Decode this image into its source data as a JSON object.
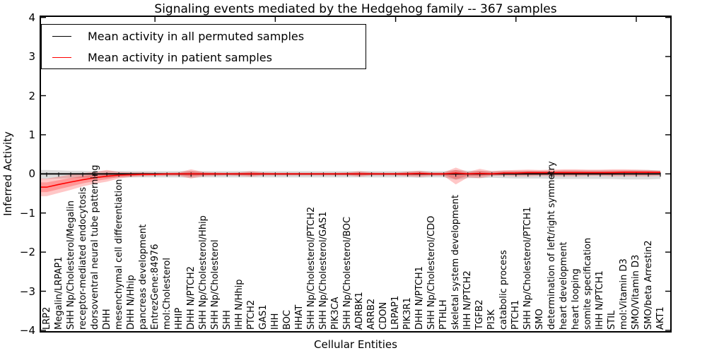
{
  "chart_data": {
    "type": "line",
    "title": "Signaling events mediated by the Hedgehog family -- 367 samples",
    "xlabel": "Cellular Entities",
    "ylabel": "Inferred Activity",
    "ylim": [
      -4,
      4
    ],
    "yticks": [
      4,
      3,
      2,
      1,
      0,
      -1,
      -2,
      -3,
      -4
    ],
    "grid": false,
    "legend_position": "upper left",
    "top_axis_tick_positions": [
      9,
      19,
      29,
      39,
      49
    ],
    "categories": [
      "LRP2",
      "Megalin/LRPAP1",
      "SHH Np/Cholesterol/Megalin",
      "receptor-mediated endocytosis",
      "dorsoventral neural tube patterning",
      "DHH",
      "mesenchymal cell differentiation",
      "DHH N/Hhip",
      "pancreas development",
      "EntrezGene:84976",
      "mol:Cholesterol",
      "HHIP",
      "DHH N/PTCH2",
      "SHH Np/Cholesterol/Hhip",
      "SHH Np/Cholesterol",
      "SHH",
      "IHH N/Hhip",
      "PTCH2",
      "GAS1",
      "IHH",
      "BOC",
      "HHAT",
      "SHH Np/Cholesterol/PTCH2",
      "SHH Np/Cholesterol/GAS1",
      "PIK3CA",
      "SHH Np/Cholesterol/BOC",
      "ADRBK1",
      "ARRB2",
      "CDON",
      "LRPAP1",
      "PIK3R1",
      "DHH N/PTCH1",
      "SHH Np/Cholesterol/CDO",
      "PTHLH",
      "skeletal system development",
      "IHH N/PTCH2",
      "TGFB2",
      "PI3K",
      "catabolic process",
      "PTCH1",
      "SHH Np/Cholesterol/PTCH1",
      "SMO",
      "determination of left/right symmetry",
      "heart development",
      "heart looping",
      "somite specification",
      "IHH N/PTCH1",
      "STIL",
      "mol:Vitamin D3",
      "SMO/Vitamin D3",
      "SMO/beta Arrestin2",
      "AKT1"
    ],
    "series": [
      {
        "name": "Mean activity in all permuted samples",
        "color": "#000000",
        "band_color": "rgba(0,0,0,0.14)",
        "values": [
          0,
          0,
          0,
          0,
          0,
          0,
          0,
          0,
          0,
          0,
          0,
          0,
          0,
          0,
          0,
          0,
          0,
          0,
          0,
          0,
          0,
          0,
          0,
          0,
          0,
          0,
          0,
          0,
          0,
          0,
          0,
          0,
          0,
          0,
          0,
          0,
          0,
          0,
          0,
          0,
          0,
          0,
          0,
          0,
          0,
          0,
          0,
          0,
          0,
          0,
          0,
          0
        ],
        "band_upper": [
          0.1,
          0.09,
          0.08,
          0.08,
          0.07,
          0.08,
          0.07,
          0.07,
          0.07,
          0.07,
          0.07,
          0.07,
          0.08,
          0.07,
          0.07,
          0.07,
          0.07,
          0.07,
          0.07,
          0.07,
          0.07,
          0.07,
          0.07,
          0.07,
          0.07,
          0.07,
          0.07,
          0.07,
          0.07,
          0.07,
          0.07,
          0.08,
          0.07,
          0.07,
          0.1,
          0.08,
          0.08,
          0.07,
          0.08,
          0.08,
          0.08,
          0.08,
          0.08,
          0.09,
          0.09,
          0.09,
          0.09,
          0.09,
          0.09,
          0.1,
          0.1,
          0.09
        ],
        "band_lower": [
          -0.13,
          -0.12,
          -0.11,
          -0.1,
          -0.1,
          -0.1,
          -0.09,
          -0.09,
          -0.09,
          -0.09,
          -0.09,
          -0.09,
          -0.1,
          -0.09,
          -0.09,
          -0.09,
          -0.09,
          -0.09,
          -0.09,
          -0.09,
          -0.09,
          -0.09,
          -0.09,
          -0.09,
          -0.09,
          -0.09,
          -0.09,
          -0.09,
          -0.09,
          -0.09,
          -0.09,
          -0.1,
          -0.09,
          -0.09,
          -0.15,
          -0.11,
          -0.11,
          -0.1,
          -0.11,
          -0.12,
          -0.12,
          -0.12,
          -0.13,
          -0.13,
          -0.13,
          -0.13,
          -0.13,
          -0.13,
          -0.14,
          -0.14,
          -0.14,
          -0.13
        ]
      },
      {
        "name": "Mean activity in patient samples",
        "color": "#ff0000",
        "band_color": "rgba(255,0,0,0.22)",
        "values": [
          -0.34,
          -0.27,
          -0.21,
          -0.15,
          -0.1,
          -0.06,
          -0.03,
          -0.02,
          -0.01,
          -0.01,
          0,
          0,
          0,
          0,
          0,
          0,
          0,
          0,
          0,
          0,
          0,
          0,
          0,
          0,
          0,
          0,
          0,
          0,
          0,
          0,
          0,
          0.01,
          0,
          0,
          0.02,
          0,
          0.01,
          0,
          0.02,
          0.02,
          0.03,
          0.03,
          0.03,
          0.03,
          0.03,
          0.03,
          0.03,
          0.03,
          0.04,
          0.04,
          0.04,
          0.04
        ],
        "band_upper": [
          -0.12,
          -0.07,
          -0.02,
          0.02,
          0.05,
          0.1,
          0.05,
          0.04,
          0.04,
          0.03,
          0.03,
          0.04,
          0.12,
          0.05,
          0.04,
          0.03,
          0.04,
          0.07,
          0.04,
          0.03,
          0.03,
          0.03,
          0.03,
          0.03,
          0.03,
          0.04,
          0.07,
          0.04,
          0.03,
          0.03,
          0.06,
          0.08,
          0.04,
          0.04,
          0.16,
          0.05,
          0.13,
          0.07,
          0.09,
          0.1,
          0.11,
          0.1,
          0.11,
          0.12,
          0.12,
          0.11,
          0.11,
          0.12,
          0.12,
          0.11,
          0.1,
          0.08
        ],
        "band_lower": [
          -0.57,
          -0.49,
          -0.41,
          -0.32,
          -0.25,
          -0.2,
          -0.12,
          -0.08,
          -0.06,
          -0.05,
          -0.05,
          -0.05,
          -0.12,
          -0.06,
          -0.05,
          -0.04,
          -0.05,
          -0.07,
          -0.04,
          -0.04,
          -0.04,
          -0.04,
          -0.04,
          -0.04,
          -0.04,
          -0.04,
          -0.07,
          -0.04,
          -0.04,
          -0.04,
          -0.06,
          -0.08,
          -0.05,
          -0.05,
          -0.27,
          -0.09,
          -0.11,
          -0.05,
          -0.05,
          -0.06,
          -0.06,
          -0.05,
          -0.06,
          -0.06,
          -0.06,
          -0.05,
          -0.05,
          -0.06,
          -0.06,
          -0.06,
          -0.06,
          -0.05
        ]
      }
    ]
  }
}
